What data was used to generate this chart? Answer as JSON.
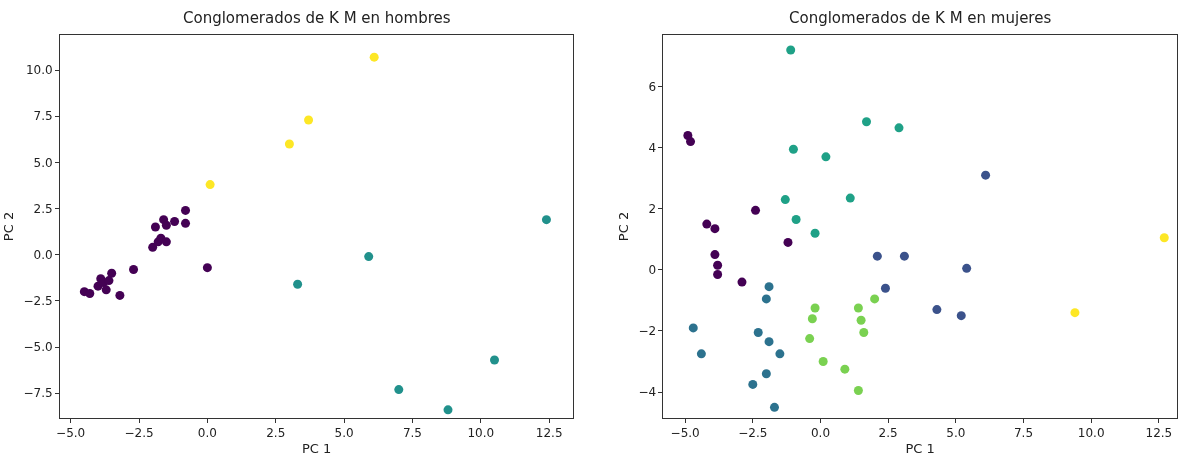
{
  "chart_data": [
    {
      "type": "scatter",
      "title": "Conglomerados de K M en hombres",
      "xlabel": "PC 1",
      "ylabel": "PC 2",
      "xlim": [
        -5.39,
        13.38
      ],
      "ylim": [
        -8.84,
        11.9
      ],
      "xticks": [
        {
          "value": -5,
          "label": "−5.0"
        },
        {
          "value": -2.5,
          "label": "−2.5"
        },
        {
          "value": 0,
          "label": "0.0"
        },
        {
          "value": 2.5,
          "label": "2.5"
        },
        {
          "value": 5,
          "label": "5.0"
        },
        {
          "value": 7.5,
          "label": "7.5"
        },
        {
          "value": 10,
          "label": "10.0"
        },
        {
          "value": 12.5,
          "label": "12.5"
        }
      ],
      "yticks": [
        {
          "value": -7.5,
          "label": "−7.5"
        },
        {
          "value": -5,
          "label": "−5.0"
        },
        {
          "value": -2.5,
          "label": "−2.5"
        },
        {
          "value": 0,
          "label": "0.0"
        },
        {
          "value": 2.5,
          "label": "2.5"
        },
        {
          "value": 5,
          "label": "5.0"
        },
        {
          "value": 7.5,
          "label": "7.5"
        },
        {
          "value": 10,
          "label": "10.0"
        }
      ],
      "series": [
        {
          "color": "#440154",
          "x": [
            -4.5,
            -4.3,
            -4.0,
            -3.9,
            -3.8,
            -3.7,
            -3.6,
            -3.5,
            -3.2,
            -2.7,
            -2.0,
            -1.9,
            -1.8,
            -1.7,
            -1.5,
            -1.6,
            -1.5,
            -1.2,
            -0.8,
            -0.8,
            0.0
          ],
          "values": [
            -2.0,
            -2.1,
            -1.7,
            -1.3,
            -1.5,
            -1.9,
            -1.4,
            -1.0,
            -2.2,
            -0.8,
            0.4,
            1.5,
            0.7,
            0.9,
            0.7,
            1.9,
            1.6,
            1.8,
            1.7,
            2.4,
            -0.7
          ]
        },
        {
          "color": "#21918c",
          "x": [
            3.3,
            5.9,
            7.0,
            8.8,
            10.5,
            12.4
          ],
          "values": [
            -1.6,
            -0.1,
            -7.3,
            -8.4,
            -5.7,
            1.9
          ]
        },
        {
          "color": "#fde725",
          "x": [
            0.1,
            3.0,
            3.7,
            6.1
          ],
          "values": [
            3.8,
            6.0,
            7.3,
            10.7
          ]
        }
      ]
    },
    {
      "type": "scatter",
      "title": "Conglomerados de K M en mujeres",
      "xlabel": "PC 1",
      "ylabel": "PC 2",
      "xlim": [
        -5.8,
        13.16
      ],
      "ylim": [
        -4.85,
        7.69
      ],
      "xticks": [
        {
          "value": -5,
          "label": "−5.0"
        },
        {
          "value": -2.5,
          "label": "−2.5"
        },
        {
          "value": 0,
          "label": "0.0"
        },
        {
          "value": 2.5,
          "label": "2.5"
        },
        {
          "value": 5,
          "label": "5.0"
        },
        {
          "value": 7.5,
          "label": "7.5"
        },
        {
          "value": 10,
          "label": "10.0"
        },
        {
          "value": 12.5,
          "label": "12.5"
        }
      ],
      "yticks": [
        {
          "value": -4,
          "label": "−4"
        },
        {
          "value": -2,
          "label": "−2"
        },
        0,
        2,
        4,
        6
      ],
      "series": [
        {
          "color": "#440154",
          "x": [
            -4.9,
            -4.8,
            -4.2,
            -3.9,
            -3.9,
            -3.8,
            -3.8,
            -2.9,
            -2.4,
            -1.2
          ],
          "values": [
            4.4,
            4.2,
            1.5,
            1.35,
            0.5,
            0.15,
            -0.15,
            -0.4,
            1.95,
            0.9
          ]
        },
        {
          "color": "#3b528b",
          "x": [
            2.1,
            3.1,
            2.4,
            5.4,
            6.1,
            4.3,
            5.2
          ],
          "values": [
            0.45,
            0.45,
            -0.6,
            0.05,
            3.1,
            -1.3,
            -1.5
          ]
        },
        {
          "color": "#2c728e",
          "x": [
            -4.7,
            -4.4,
            -1.9,
            -2.0,
            -2.3,
            -1.9,
            -1.5,
            -2.0,
            -2.5,
            -1.7
          ],
          "values": [
            -1.9,
            -2.75,
            -0.55,
            -0.95,
            -2.05,
            -2.35,
            -2.75,
            -3.4,
            -3.75,
            -4.5
          ]
        },
        {
          "color": "#1fa187",
          "x": [
            -1.1,
            1.7,
            2.9,
            -1.0,
            0.2,
            -1.3,
            1.1,
            -0.9,
            -0.2
          ],
          "values": [
            7.2,
            4.85,
            4.65,
            3.95,
            3.7,
            2.3,
            2.35,
            1.65,
            1.2
          ]
        },
        {
          "color": "#7ad151",
          "x": [
            -0.2,
            -0.3,
            1.4,
            1.5,
            2.0,
            1.6,
            -0.4,
            0.1,
            0.9,
            1.4
          ],
          "values": [
            -1.25,
            -1.6,
            -1.25,
            -1.65,
            -0.95,
            -2.05,
            -2.25,
            -3.0,
            -3.25,
            -3.95
          ]
        },
        {
          "color": "#fde725",
          "x": [
            9.4,
            12.7
          ],
          "values": [
            -1.4,
            1.05
          ]
        }
      ]
    }
  ]
}
